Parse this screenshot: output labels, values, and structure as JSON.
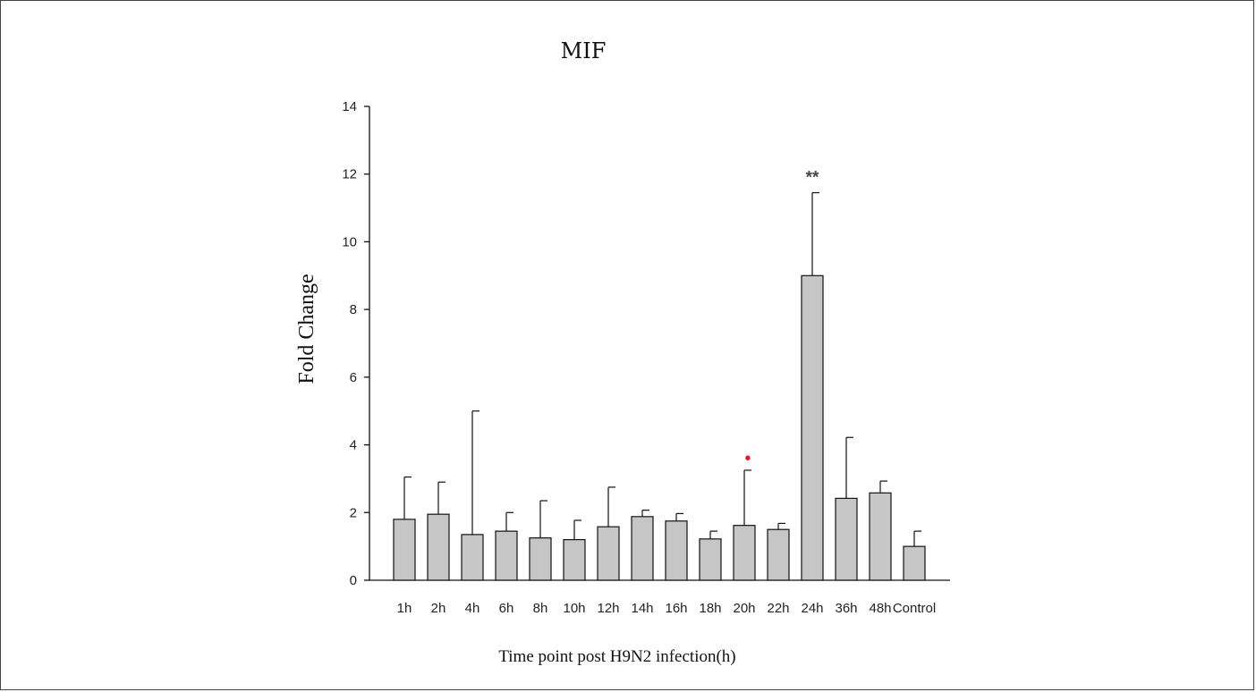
{
  "chart_data": {
    "type": "bar",
    "title": "MIF",
    "xlabel": "Time point post H9N2 infection(h)",
    "ylabel": "Fold Change",
    "ylim": [
      0,
      14
    ],
    "yticks": [
      "0",
      "2",
      "4",
      "6",
      "8",
      "10",
      "12",
      "14"
    ],
    "categories": [
      "1h",
      "2h",
      "4h",
      "6h",
      "8h",
      "10h",
      "12h",
      "14h",
      "16h",
      "18h",
      "20h",
      "22h",
      "24h",
      "36h",
      "48h",
      "Control"
    ],
    "values": [
      1.8,
      1.95,
      1.35,
      1.45,
      1.25,
      1.2,
      1.58,
      1.88,
      1.75,
      1.22,
      1.62,
      1.5,
      9.0,
      2.42,
      2.58,
      1.0
    ],
    "error_upper": [
      3.05,
      2.9,
      5.0,
      2.0,
      2.35,
      1.77,
      2.75,
      2.07,
      1.97,
      1.45,
      3.25,
      1.68,
      11.45,
      4.22,
      2.93,
      1.45
    ],
    "annotations": [
      {
        "category": "20h",
        "text": "•",
        "color": "#e02020",
        "y": 3.6
      },
      {
        "category": "24h",
        "text": "**",
        "color": "#444444",
        "y": 11.9
      }
    ],
    "bar_color": "#c6c6c6",
    "grid": false,
    "legend": "none"
  }
}
